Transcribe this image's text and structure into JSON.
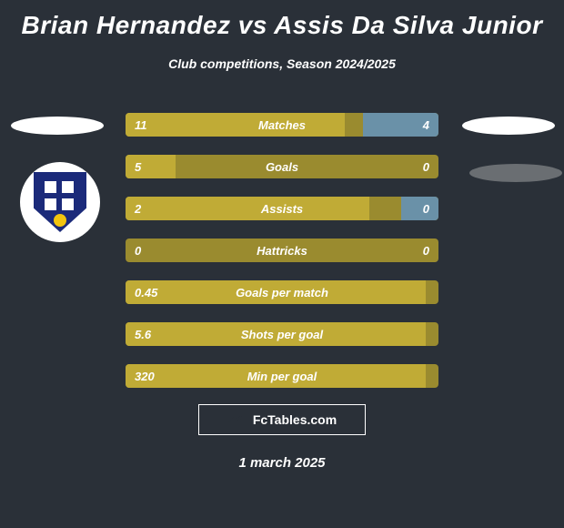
{
  "title": "Brian Hernandez vs Assis Da Silva Junior",
  "subtitle": "Club competitions, Season 2024/2025",
  "footer_brand": "FcTables.com",
  "date": "1 march 2025",
  "colors": {
    "background": "#2a3038",
    "bar_base": "#9a8b2f",
    "bar_left": "#c0ab36",
    "bar_right": "#6a91a8",
    "text": "#ffffff"
  },
  "logo": {
    "shield_color": "#1b2a7a",
    "cross_color": "#ffffff",
    "ball_color": "#f2c40f"
  },
  "bars": [
    {
      "label": "Matches",
      "left": "11",
      "right": "4",
      "left_pct": 70,
      "right_pct": 24
    },
    {
      "label": "Goals",
      "left": "5",
      "right": "0",
      "left_pct": 16,
      "right_pct": 0
    },
    {
      "label": "Assists",
      "left": "2",
      "right": "0",
      "left_pct": 78,
      "right_pct": 12
    },
    {
      "label": "Hattricks",
      "left": "0",
      "right": "0",
      "left_pct": 0,
      "right_pct": 0
    },
    {
      "label": "Goals per match",
      "left": "0.45",
      "right": "",
      "left_pct": 96,
      "right_pct": 0
    },
    {
      "label": "Shots per goal",
      "left": "5.6",
      "right": "",
      "left_pct": 96,
      "right_pct": 0
    },
    {
      "label": "Min per goal",
      "left": "320",
      "right": "",
      "left_pct": 96,
      "right_pct": 0
    }
  ]
}
